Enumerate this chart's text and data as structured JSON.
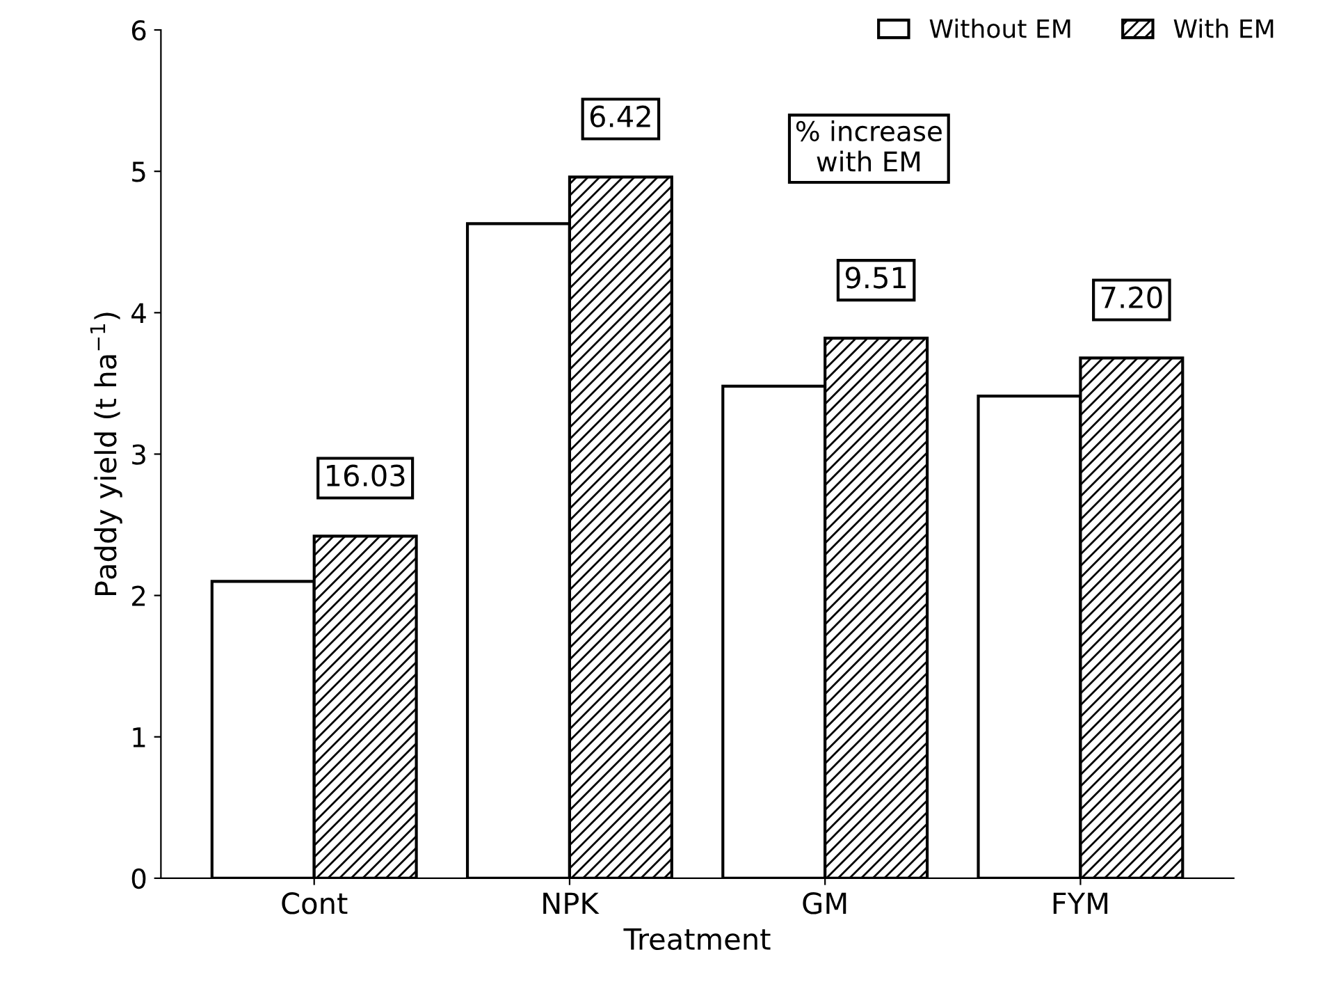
{
  "chart_data": {
    "type": "bar",
    "xlabel": "Treatment",
    "ylabel": "Paddy yield (t ha$^{−1}$)",
    "categories": [
      "Cont",
      "NPK",
      "GM",
      "FYM"
    ],
    "series": [
      {
        "name": "Without EM",
        "color": "#ffffff",
        "values": [
          2.1,
          4.63,
          3.48,
          3.41
        ]
      },
      {
        "name": "With EM",
        "color": "#000000",
        "values": [
          2.42,
          4.96,
          3.82,
          3.68
        ]
      }
    ],
    "ylim": [
      0,
      6
    ],
    "yticks": [
      0,
      1,
      2,
      3,
      4,
      5,
      6
    ],
    "grid": false,
    "legend": "top right",
    "annotations": [
      "16.03",
      "6.42",
      "9.51",
      "7.20",
      "% increase\nwith EM"
    ]
  }
}
